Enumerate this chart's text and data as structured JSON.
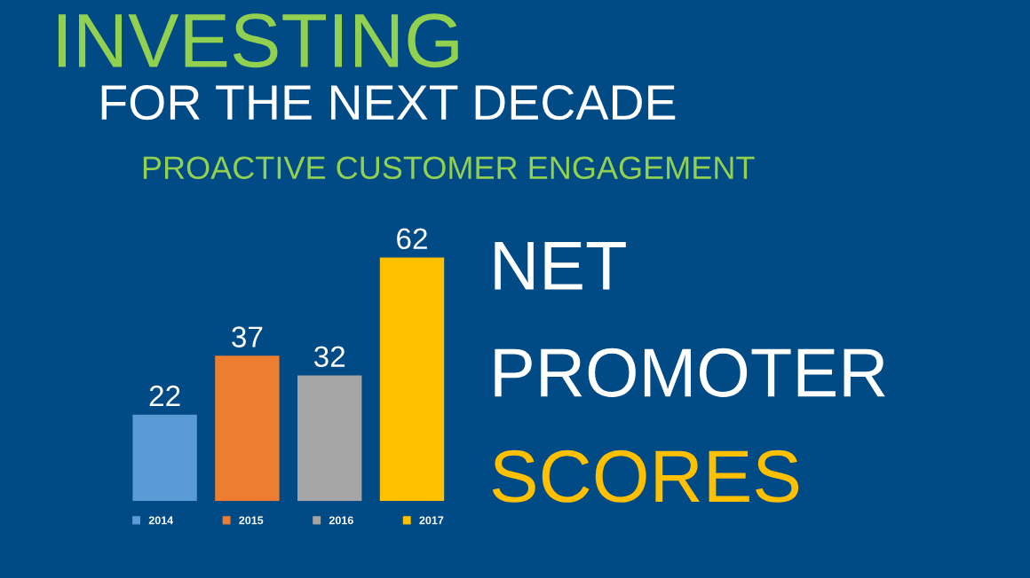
{
  "chart_data": {
    "type": "bar",
    "title": "INVESTING",
    "subtitle": "FOR THE NEXT DECADE",
    "annotations": [
      "PROACTIVE CUSTOMER ENGAGEMENT",
      "NET",
      "PROMOTER",
      "SCORES"
    ],
    "categories": [
      null
    ],
    "series": [
      {
        "name": "2014",
        "color": "#5b9bd5",
        "values": [
          22
        ]
      },
      {
        "name": "2015",
        "color": "#ed7d31",
        "values": [
          37
        ]
      },
      {
        "name": "2016",
        "color": "#a5a5a5",
        "values": [
          32
        ]
      },
      {
        "name": "2017",
        "color": "#ffc000",
        "values": [
          62
        ]
      }
    ],
    "data_labels": true,
    "legend": "bottom",
    "grid": false
  }
}
